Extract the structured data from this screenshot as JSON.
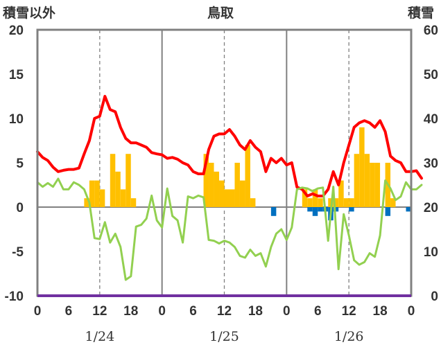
{
  "chart_data": {
    "type": "bar+line",
    "title": "鳥取",
    "left_axis_label": "積雪以外",
    "right_axis_label": "積雪",
    "left_ylim": [
      -10,
      20
    ],
    "left_yticks": [
      20,
      15,
      10,
      5,
      0,
      -5,
      -10
    ],
    "right_ylim": [
      0,
      60
    ],
    "right_yticks": [
      60,
      50,
      40,
      30,
      20,
      10,
      0
    ],
    "x_range_hours": [
      0,
      72
    ],
    "x_tick_labels": [
      "0",
      "6",
      "12",
      "18",
      "0",
      "6",
      "12",
      "18",
      "0",
      "6",
      "12",
      "18",
      "0"
    ],
    "date_labels": [
      "1/24",
      "1/25",
      "1/26"
    ],
    "colors": {
      "snow_depth": "#ff0000",
      "temperature": "#92d050",
      "snowfall": "#ffc000",
      "snow_decrease": "#0070c0",
      "baseline": "#7030a0",
      "frame": "#808080",
      "grid": "#808080"
    },
    "series": [
      {
        "name": "snow_depth",
        "axis": "right",
        "points": [
          [
            0,
            32.5
          ],
          [
            1,
            31.2
          ],
          [
            2,
            30.5
          ],
          [
            3,
            29
          ],
          [
            4,
            28
          ],
          [
            5,
            28.3
          ],
          [
            6,
            28.5
          ],
          [
            7,
            28.5
          ],
          [
            8,
            28.8
          ],
          [
            9,
            32
          ],
          [
            10,
            35
          ],
          [
            11,
            40
          ],
          [
            12,
            40.5
          ],
          [
            13,
            45
          ],
          [
            14,
            42
          ],
          [
            15,
            41.5
          ],
          [
            16,
            38
          ],
          [
            17,
            35.5
          ],
          [
            18,
            34.5
          ],
          [
            19,
            34.5
          ],
          [
            20,
            34
          ],
          [
            21,
            33.5
          ],
          [
            22,
            32.3
          ],
          [
            23,
            32
          ],
          [
            24,
            31.8
          ],
          [
            25,
            31
          ],
          [
            26,
            31.2
          ],
          [
            27,
            30.8
          ],
          [
            28,
            30
          ],
          [
            29,
            29.5
          ],
          [
            30,
            28
          ],
          [
            31,
            27.5
          ],
          [
            32,
            27.5
          ],
          [
            33,
            33
          ],
          [
            34,
            36
          ],
          [
            35,
            36.5
          ],
          [
            36,
            36.5
          ],
          [
            37,
            37.5
          ],
          [
            38,
            36
          ],
          [
            39,
            34
          ],
          [
            40,
            33
          ],
          [
            41,
            35
          ],
          [
            42,
            33.5
          ],
          [
            43,
            32.5
          ],
          [
            44,
            28
          ],
          [
            45,
            31
          ],
          [
            46,
            30
          ],
          [
            47,
            31
          ],
          [
            48,
            29.5
          ],
          [
            49,
            30
          ],
          [
            50,
            24.5
          ],
          [
            51,
            24
          ],
          [
            52,
            22.5
          ],
          [
            53,
            23
          ],
          [
            54,
            22.5
          ],
          [
            55,
            22.5
          ],
          [
            56,
            24
          ],
          [
            57,
            28
          ],
          [
            58,
            25
          ],
          [
            59,
            30
          ],
          [
            60,
            34
          ],
          [
            61,
            38
          ],
          [
            62,
            39
          ],
          [
            63,
            39.5
          ],
          [
            64,
            39
          ],
          [
            65,
            38
          ],
          [
            66,
            39.5
          ],
          [
            67,
            37
          ],
          [
            68,
            31.5
          ],
          [
            69,
            30.5
          ],
          [
            70,
            30
          ],
          [
            71,
            28
          ],
          [
            72,
            28
          ],
          [
            73,
            28.2
          ],
          [
            74,
            26.5
          ]
        ]
      },
      {
        "name": "temperature",
        "axis": "left",
        "points": [
          [
            0,
            2.8
          ],
          [
            1,
            2.3
          ],
          [
            2,
            2.7
          ],
          [
            3,
            2.3
          ],
          [
            4,
            3.2
          ],
          [
            5,
            2
          ],
          [
            6,
            2
          ],
          [
            7,
            2.8
          ],
          [
            8,
            2.5
          ],
          [
            9,
            2
          ],
          [
            10,
            0.5
          ],
          [
            11,
            -3.5
          ],
          [
            12,
            -3.6
          ],
          [
            13,
            -1.7
          ],
          [
            14,
            -4
          ],
          [
            15,
            -3
          ],
          [
            16,
            -4.5
          ],
          [
            17,
            -8.2
          ],
          [
            18,
            -7.8
          ],
          [
            19,
            -2.2
          ],
          [
            20,
            -2
          ],
          [
            21,
            -1.3
          ],
          [
            22,
            1.3
          ],
          [
            23,
            -1.5
          ],
          [
            24,
            -2.3
          ],
          [
            25,
            2.1
          ],
          [
            26,
            -1
          ],
          [
            27,
            -1.5
          ],
          [
            28,
            -4
          ],
          [
            29,
            1.2
          ],
          [
            30,
            1
          ],
          [
            31,
            1.3
          ],
          [
            32,
            1.1
          ],
          [
            33,
            -3.7
          ],
          [
            34,
            -3.8
          ],
          [
            35,
            -4.1
          ],
          [
            36,
            -3.8
          ],
          [
            37,
            -4
          ],
          [
            38,
            -4.5
          ],
          [
            39,
            -5.5
          ],
          [
            40,
            -5.7
          ],
          [
            41,
            -4.8
          ],
          [
            42,
            -5.5
          ],
          [
            43,
            -5.2
          ],
          [
            44,
            -6.7
          ],
          [
            45,
            -4.5
          ],
          [
            46,
            -3
          ],
          [
            47,
            -2.5
          ],
          [
            48,
            -3.7
          ],
          [
            49,
            -2.3
          ],
          [
            50,
            2
          ],
          [
            51,
            2.2
          ],
          [
            52,
            2.1
          ],
          [
            53,
            1.8
          ],
          [
            54,
            2.1
          ],
          [
            55,
            2.2
          ],
          [
            56,
            -3.8
          ],
          [
            57,
            2.3
          ],
          [
            58,
            -7
          ],
          [
            59,
            -0.8
          ],
          [
            60,
            -3.2
          ],
          [
            61,
            -6
          ],
          [
            62,
            -6.5
          ],
          [
            63,
            -6.2
          ],
          [
            64,
            -5.2
          ],
          [
            65,
            -5.6
          ],
          [
            66,
            -3.2
          ],
          [
            67,
            3
          ],
          [
            68,
            2.1
          ],
          [
            69,
            0.8
          ],
          [
            70,
            1.2
          ],
          [
            71,
            2.8
          ],
          [
            72,
            2
          ],
          [
            73,
            2
          ],
          [
            74,
            2.5
          ]
        ]
      },
      {
        "name": "snowfall",
        "axis": "left",
        "kind": "bar",
        "bars": [
          [
            9,
            1
          ],
          [
            10,
            3
          ],
          [
            11,
            3
          ],
          [
            12,
            2
          ],
          [
            13,
            0
          ],
          [
            14,
            6
          ],
          [
            15,
            4
          ],
          [
            16,
            2
          ],
          [
            17,
            6
          ],
          [
            18,
            1
          ],
          [
            32,
            6
          ],
          [
            33,
            5
          ],
          [
            34,
            4
          ],
          [
            35,
            3
          ],
          [
            36,
            2
          ],
          [
            37,
            2
          ],
          [
            38,
            5
          ],
          [
            39,
            3
          ],
          [
            40,
            7
          ],
          [
            41,
            1
          ],
          [
            51,
            2
          ],
          [
            52,
            1
          ],
          [
            53,
            2
          ],
          [
            54,
            1
          ],
          [
            56,
            1
          ],
          [
            57,
            1
          ],
          [
            58,
            3
          ],
          [
            59,
            1
          ],
          [
            60,
            1
          ],
          [
            61,
            6
          ],
          [
            62,
            9
          ],
          [
            63,
            6
          ],
          [
            64,
            5
          ],
          [
            65,
            5
          ],
          [
            66,
            0
          ],
          [
            67,
            5
          ],
          [
            68,
            1
          ]
        ]
      },
      {
        "name": "snow_decrease",
        "axis": "left",
        "kind": "bar",
        "bars": [
          [
            45,
            -1
          ],
          [
            52,
            -0.5
          ],
          [
            53,
            -1
          ],
          [
            54,
            -0.5
          ],
          [
            55,
            -0.5
          ],
          [
            56,
            -1.5
          ],
          [
            57,
            -0.5
          ],
          [
            60,
            -0.5
          ],
          [
            67,
            -1
          ],
          [
            71,
            -0.5
          ]
        ]
      }
    ]
  }
}
